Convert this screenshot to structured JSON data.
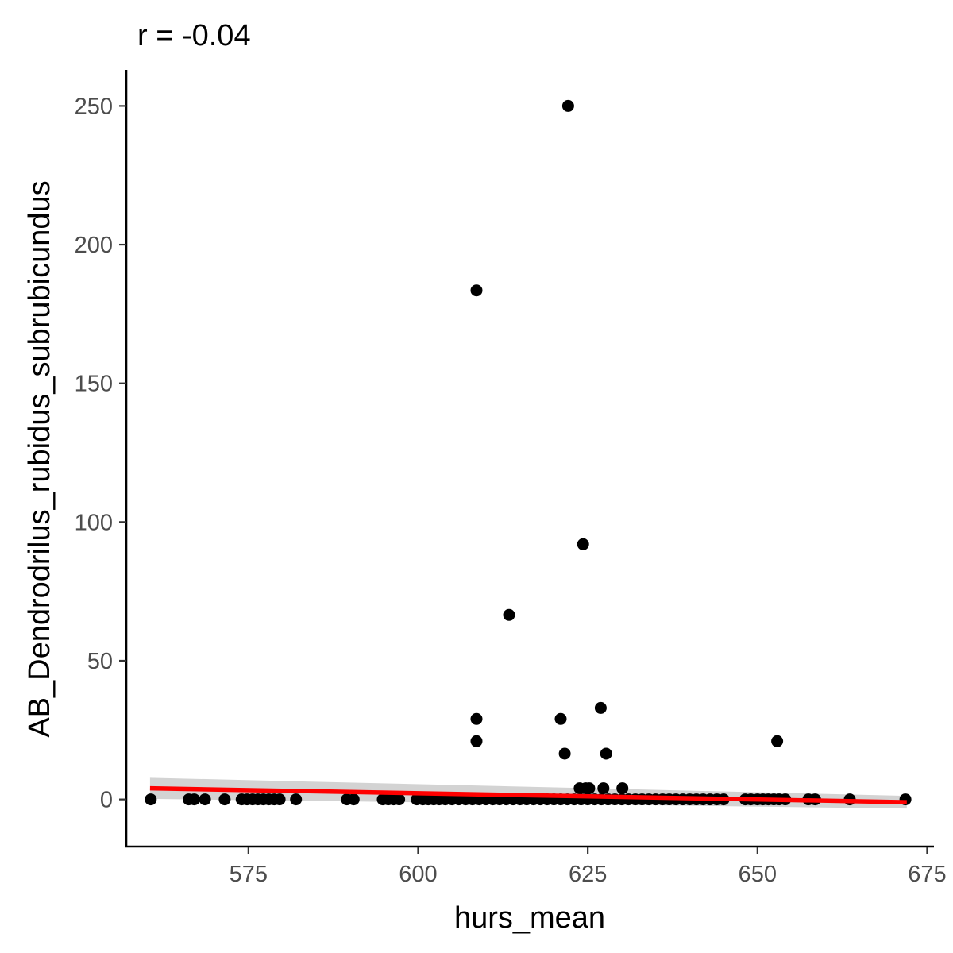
{
  "chart_data": {
    "type": "scatter",
    "title": "r = -0.04",
    "xlabel": "hurs_mean",
    "ylabel": "AB_Dendrodrilus_rubidus_subrubicundus",
    "xlim": [
      557,
      676
    ],
    "ylim": [
      -17,
      263
    ],
    "xticks": [
      575,
      600,
      625,
      650,
      675
    ],
    "yticks": [
      0,
      50,
      100,
      150,
      200,
      250
    ],
    "grid": false,
    "legend": "none",
    "point_color": "#000000",
    "fit_line_color": "#ff0000",
    "ci_band_color": "#d3d3d3",
    "fit_line": {
      "x": [
        560.5,
        672
      ],
      "y": [
        4.0,
        -1.0
      ],
      "ci_lower": [
        0.2,
        -3.3
      ],
      "ci_upper": [
        7.8,
        1.3
      ]
    },
    "series": [
      {
        "x": [
          622.1,
          608.6,
          624.3,
          613.4,
          626.9,
          608.6,
          621.0,
          608.6,
          652.9,
          621.6,
          627.7,
          623.8,
          624.7,
          625.2,
          627.3,
          630.1,
          560.6,
          566.2,
          567.0,
          568.6,
          571.5,
          574.0,
          574.8,
          575.6,
          576.4,
          577.2,
          578.0,
          578.8,
          579.6,
          582.0,
          589.5,
          590.5,
          594.8,
          595.6,
          596.4,
          597.2,
          599.8,
          600.7,
          601.5,
          602.3,
          603.1,
          604.0,
          605.0,
          606.0,
          607.0,
          608.0,
          609.0,
          610.0,
          611.0,
          612.0,
          613.0,
          614.0,
          615.0,
          616.0,
          617.0,
          618.0,
          619.0,
          620.0,
          621.0,
          622.0,
          623.0,
          624.0,
          625.0,
          626.0,
          627.0,
          628.0,
          629.0,
          630.0,
          631.0,
          632.0,
          633.0,
          634.0,
          635.0,
          636.0,
          637.0,
          638.0,
          639.0,
          640.0,
          641.0,
          642.0,
          643.0,
          644.0,
          645.0,
          648.2,
          649.0,
          650.0,
          650.8,
          651.6,
          652.4,
          653.2,
          654.1,
          657.5,
          658.5,
          663.6,
          671.8
        ],
        "y": [
          250,
          183.5,
          92,
          66.5,
          33,
          29,
          29,
          21,
          21,
          16.5,
          16.5,
          4,
          4,
          4,
          4,
          4,
          0,
          0,
          0,
          0,
          0,
          0,
          0,
          0,
          0,
          0,
          0,
          0,
          0,
          0,
          0,
          0,
          0,
          0,
          0,
          0,
          0,
          0,
          0,
          0,
          0,
          0,
          0,
          0,
          0,
          0,
          0,
          0,
          0,
          0,
          0,
          0,
          0,
          0,
          0,
          0,
          0,
          0,
          0,
          0,
          0,
          0,
          0,
          0,
          0,
          0,
          0,
          0,
          0,
          0,
          0,
          0,
          0,
          0,
          0,
          0,
          0,
          0,
          0,
          0,
          0,
          0,
          0,
          0,
          0,
          0,
          0,
          0,
          0,
          0,
          0,
          0,
          0,
          0,
          0
        ]
      }
    ]
  }
}
